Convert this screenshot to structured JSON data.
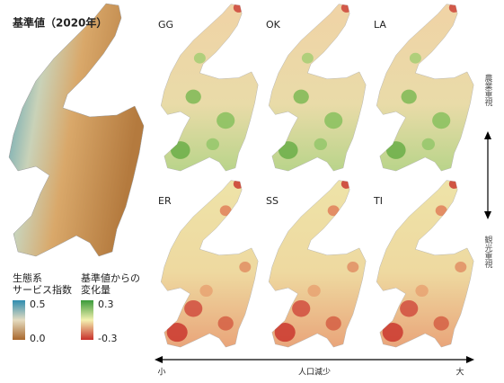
{
  "title": "基準値（2020年）",
  "panels": [
    {
      "label": "GG"
    },
    {
      "label": "OK"
    },
    {
      "label": "LA"
    },
    {
      "label": "ER"
    },
    {
      "label": "SS"
    },
    {
      "label": "TI"
    }
  ],
  "legend_index": {
    "title": [
      "生態系",
      "サービス指数"
    ],
    "max": "0.5",
    "min": "0.0"
  },
  "legend_change": {
    "title": [
      "基準値からの",
      "変化量"
    ],
    "max": "0.3",
    "min": "-0.3"
  },
  "x_axis": {
    "left": "小",
    "center": "人口減少",
    "right": "大"
  },
  "y_axis": {
    "top": "農業重視",
    "bottom": "観光重視"
  }
}
